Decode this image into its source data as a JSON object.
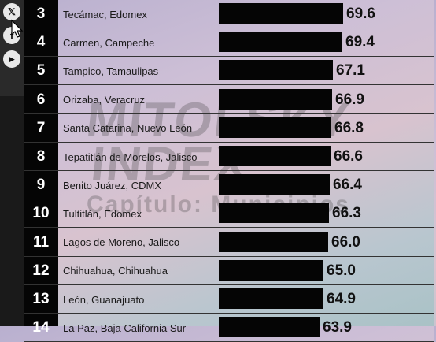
{
  "social": {
    "x_icon": "x-icon",
    "facebook_icon": "facebook-icon",
    "youtube_icon": "youtube-icon",
    "x_glyph": "𝕏",
    "facebook_glyph": "f",
    "youtube_glyph": "▶"
  },
  "watermark": {
    "line1": "MITOFSKY",
    "line2": "INDEX",
    "line3": "Capítulo: Municipios"
  },
  "ranking": [
    {
      "rank": "3",
      "city": "Tecámac, Edomex",
      "score": "69.6",
      "value": 69.6
    },
    {
      "rank": "4",
      "city": "Carmen, Campeche",
      "score": "69.4",
      "value": 69.4
    },
    {
      "rank": "5",
      "city": "Tampico, Tamaulipas",
      "score": "67.1",
      "value": 67.1
    },
    {
      "rank": "6",
      "city": "Orizaba, Veracruz",
      "score": "66.9",
      "value": 66.9
    },
    {
      "rank": "7",
      "city": "Santa Catarina, Nuevo León",
      "score": "66.8",
      "value": 66.8
    },
    {
      "rank": "8",
      "city": "Tepatitlán de Morelos, Jalisco",
      "score": "66.6",
      "value": 66.6
    },
    {
      "rank": "9",
      "city": "Benito Juárez, CDMX",
      "score": "66.4",
      "value": 66.4
    },
    {
      "rank": "10",
      "city": "Tultitlán, Edomex",
      "score": "66.3",
      "value": 66.3
    },
    {
      "rank": "11",
      "city": "Lagos de Moreno, Jalisco",
      "score": "66.0",
      "value": 66.0
    },
    {
      "rank": "12",
      "city": "Chihuahua, Chihuahua",
      "score": "65.0",
      "value": 65.0
    },
    {
      "rank": "13",
      "city": "León, Guanajuato",
      "score": "64.9",
      "value": 64.9
    },
    {
      "rank": "14",
      "city": "La Paz, Baja California Sur",
      "score": "63.9",
      "value": 63.9
    }
  ],
  "colors": {
    "bar": "#050505",
    "rank_band": "#050505",
    "rank_text": "#ffffff"
  }
}
